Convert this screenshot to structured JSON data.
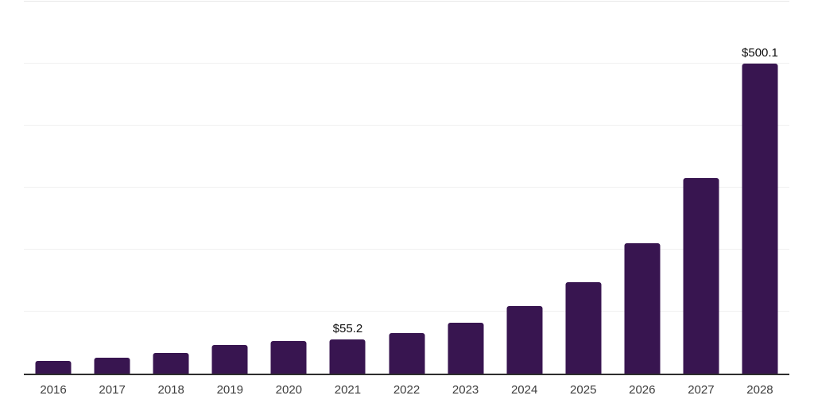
{
  "chart_data": {
    "type": "bar",
    "title": "",
    "xlabel": "",
    "ylabel": "",
    "categories": [
      "2016",
      "2017",
      "2018",
      "2019",
      "2020",
      "2021",
      "2022",
      "2023",
      "2024",
      "2025",
      "2026",
      "2027",
      "2028"
    ],
    "values": [
      19.9,
      26.3,
      33.9,
      46.1,
      52.5,
      55.2,
      65.6,
      82.6,
      109.5,
      147.9,
      210.7,
      314.9,
      500.1
    ],
    "value_labels": [
      null,
      null,
      null,
      null,
      null,
      "$55.2",
      null,
      null,
      null,
      null,
      null,
      null,
      "$500.1"
    ],
    "ylim": [
      0,
      600
    ],
    "gridline_step": 100,
    "grid": "horizontal",
    "legend": "none",
    "y_axis_tick_labels_visible": false,
    "colors": {
      "bar": "#381550",
      "axis_line": "#2e2e2e",
      "gridline": "#f0f0f0",
      "top_gridline": "#e7e7e7",
      "value_label_text": "#0d0d0d",
      "tick_label_text": "#3d3d3d",
      "background": "#ffffff"
    }
  }
}
